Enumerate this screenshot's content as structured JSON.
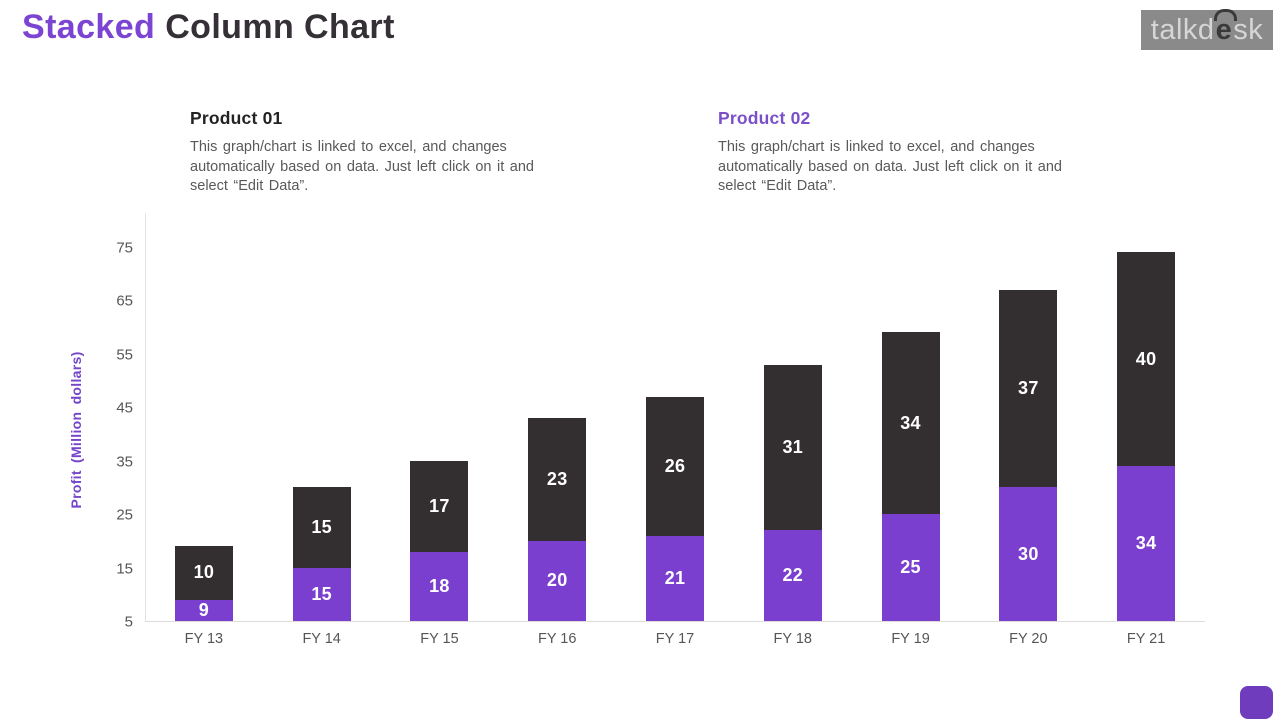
{
  "header": {
    "title_accent": "Stacked",
    "title_rest": "Column Chart",
    "logo": {
      "pre": "talkd",
      "e": "e",
      "post": "sk"
    }
  },
  "products": [
    {
      "name": "Product 01",
      "description": "This graph/chart is linked to excel, and changes\nautomatically based on data. Just left click on it and\nselect “Edit Data”."
    },
    {
      "name": "Product 02",
      "description": "This graph/chart is linked to excel, and changes\nautomatically based on data. Just left click on it and\nselect “Edit Data”."
    }
  ],
  "chart_data": {
    "type": "bar",
    "stacked": true,
    "title": "",
    "xlabel": "",
    "ylabel": "Profit (Million dollars)",
    "categories": [
      "FY 13",
      "FY 14",
      "FY 15",
      "FY 16",
      "FY 17",
      "FY 18",
      "FY 19",
      "FY 20",
      "FY 21"
    ],
    "series": [
      {
        "name": "bottom segment (purple)",
        "color": "#7A3FCE",
        "values": [
          9,
          15,
          18,
          20,
          21,
          22,
          25,
          30,
          34
        ]
      },
      {
        "name": "top segment (dark)",
        "color": "#332E2F",
        "values": [
          10,
          15,
          17,
          23,
          26,
          31,
          34,
          37,
          40
        ]
      }
    ],
    "yticks": [
      5,
      15,
      25,
      35,
      45,
      55,
      65,
      75
    ],
    "ymin": 5,
    "ymax": 80,
    "gridlines": false,
    "legend": "none",
    "value_labels": "white, bold, centered inside segments"
  },
  "colors": {
    "accent_purple": "#7B44D2",
    "bar_purple": "#7A3FCE",
    "bar_dark": "#332E2F",
    "title_dark": "#343036",
    "body_gray": "#595959",
    "axis_text_gray": "#565656",
    "logo_bg": "#8A8A8A",
    "logo_text": "#D6D6D6",
    "corner_accent": "#6F3CBE"
  }
}
